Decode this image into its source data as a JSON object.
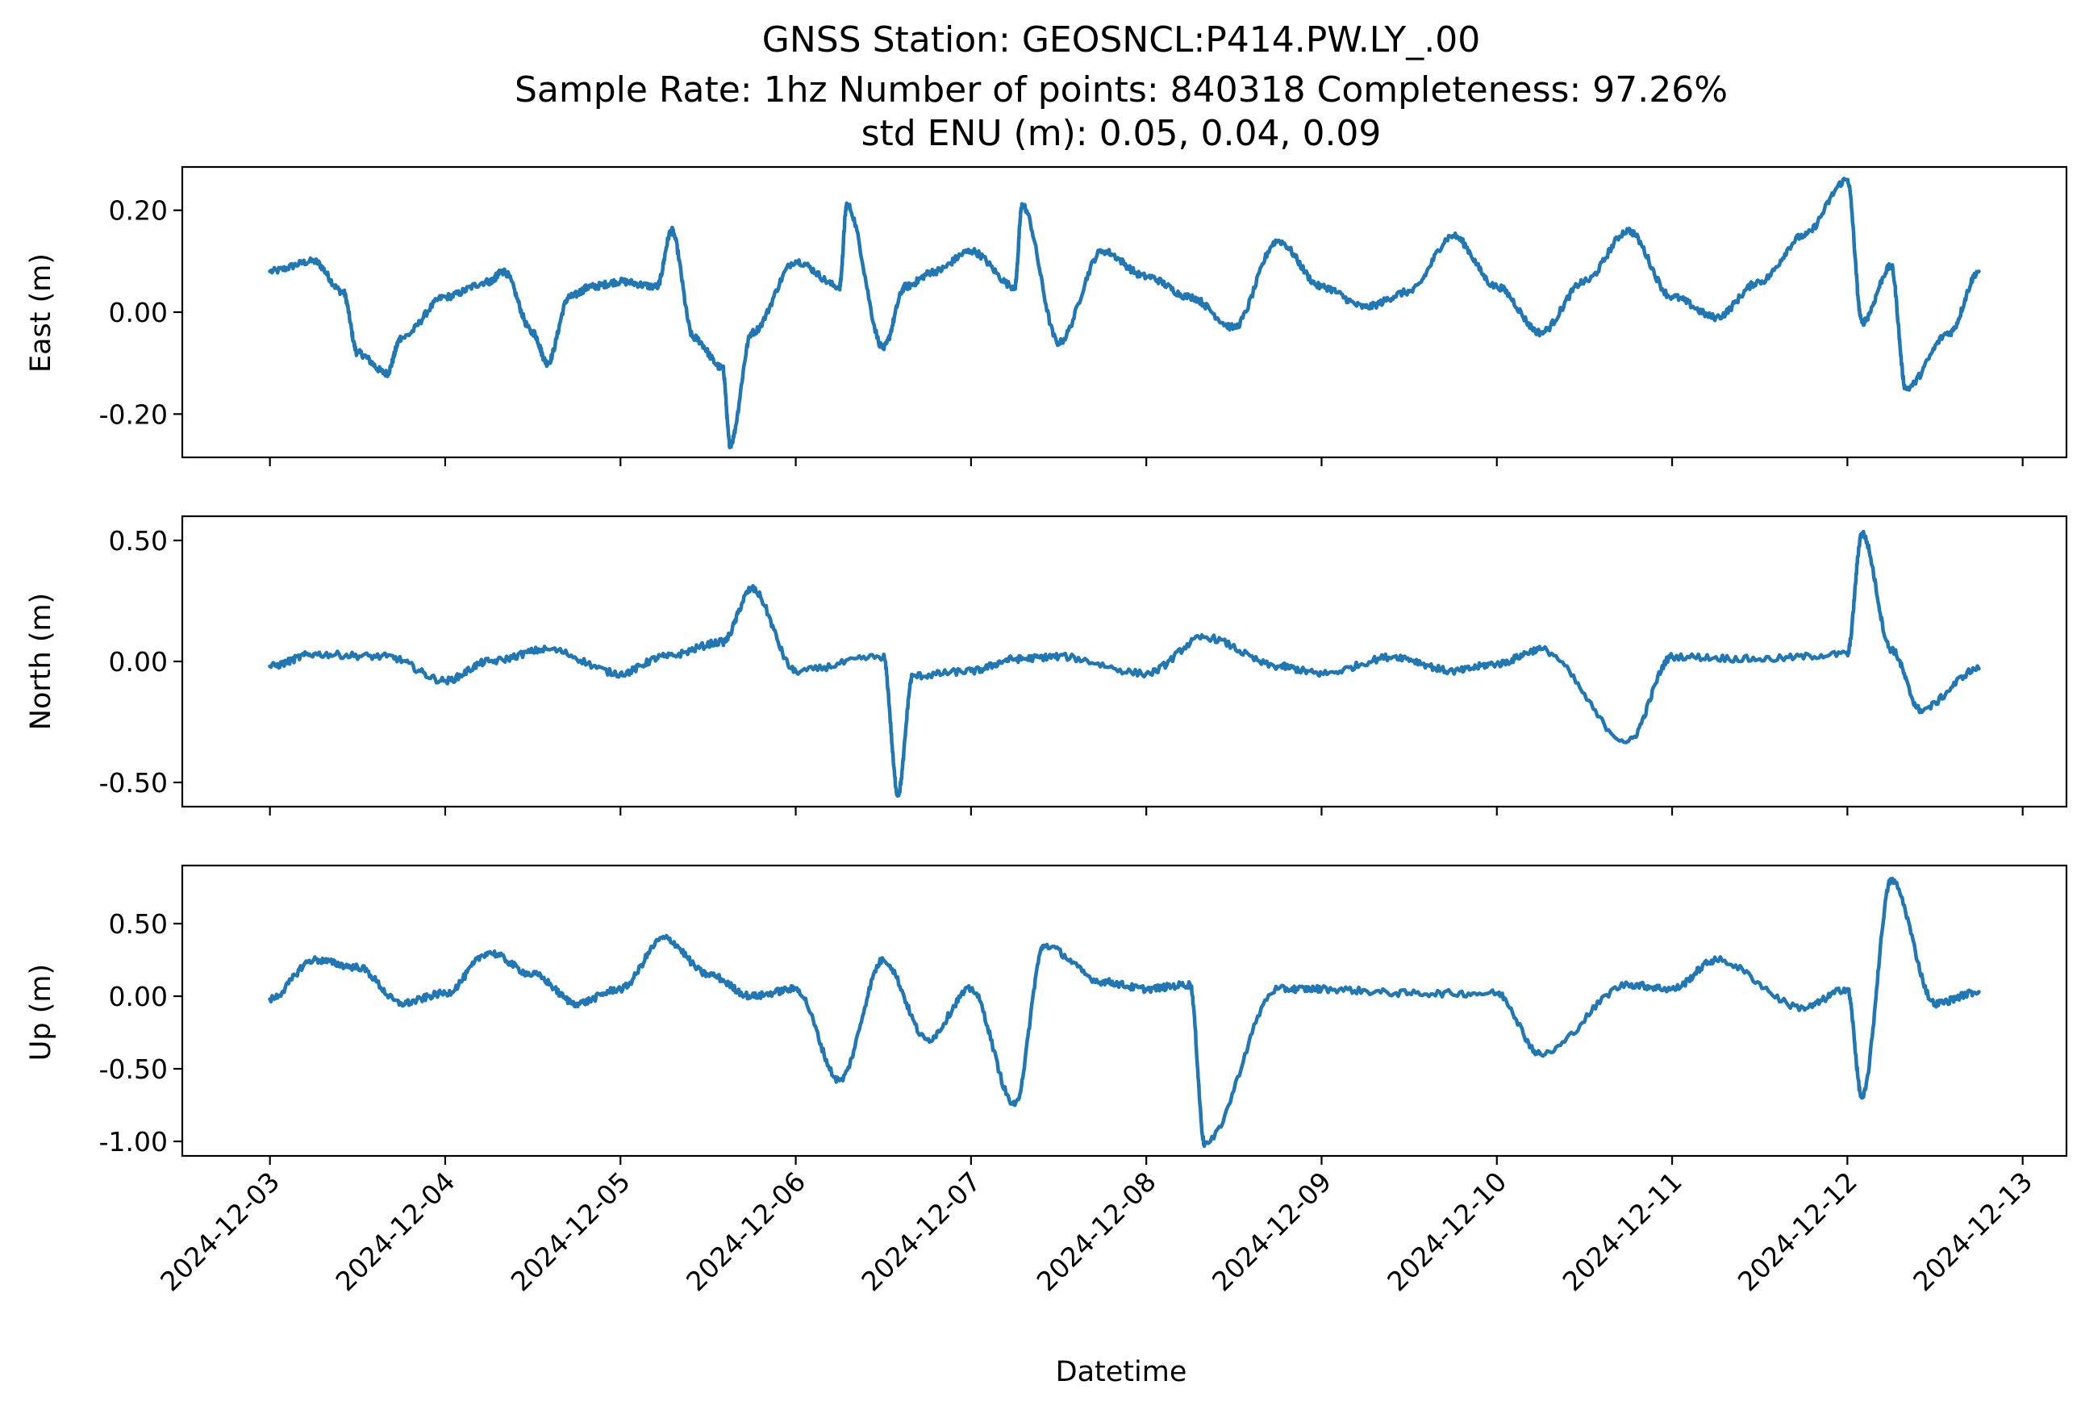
{
  "figure": {
    "title_lines": [
      "GNSS Station: GEOSNCL:P414.PW.LY_.00",
      "Sample Rate: 1hz   Number of points: 840318    Completeness:  97.26%",
      "std ENU (m):  0.05, 0.04, 0.09"
    ],
    "xlabel": "Datetime",
    "line_color": "#1f77b4"
  },
  "chart_data": [
    {
      "type": "line",
      "panel": "east",
      "ylabel": "East (m)",
      "x_ticks": [
        "2024-12-03",
        "2024-12-04",
        "2024-12-05",
        "2024-12-06",
        "2024-12-07",
        "2024-12-08",
        "2024-12-09",
        "2024-12-10",
        "2024-12-11",
        "2024-12-12",
        "2024-12-13"
      ],
      "y_ticks": [
        0.2,
        0.0,
        -0.2
      ],
      "y_tick_labels": [
        "0.20",
        "0.00",
        "-0.20"
      ],
      "ylim": [
        -0.285,
        0.285
      ],
      "xlim": [
        "2024-12-02T12:00",
        "2024-12-13T06:00"
      ],
      "series": [
        {
          "x": [
            "2024-12-03T00:00",
            "2024-12-03T06:00",
            "2024-12-03T10:00",
            "2024-12-03T12:00",
            "2024-12-03T16:00",
            "2024-12-03T18:00",
            "2024-12-04T00:00",
            "2024-12-04T06:00",
            "2024-12-04T08:00",
            "2024-12-04T12:00",
            "2024-12-04T14:00",
            "2024-12-04T17:00",
            "2024-12-04T20:00",
            "2024-12-05T00:00",
            "2024-12-05T05:00",
            "2024-12-05T07:00",
            "2024-12-05T10:00",
            "2024-12-05T14:00",
            "2024-12-05T15:00",
            "2024-12-05T18:00",
            "2024-12-06T00:00",
            "2024-12-06T06:00",
            "2024-12-06T07:00",
            "2024-12-06T12:00",
            "2024-12-06T15:00",
            "2024-12-06T19:00",
            "2024-12-07T00:00",
            "2024-12-07T06:00",
            "2024-12-07T07:00",
            "2024-12-07T12:00",
            "2024-12-07T18:00",
            "2024-12-08T00:00",
            "2024-12-08T06:00",
            "2024-12-08T12:00",
            "2024-12-08T18:00",
            "2024-12-09T00:00",
            "2024-12-09T06:00",
            "2024-12-09T12:00",
            "2024-12-09T18:00",
            "2024-12-10T00:00",
            "2024-12-10T06:00",
            "2024-12-10T12:00",
            "2024-12-10T18:00",
            "2024-12-11T00:00",
            "2024-12-11T06:00",
            "2024-12-11T12:00",
            "2024-12-11T18:00",
            "2024-12-12T00:00",
            "2024-12-12T02:00",
            "2024-12-12T06:00",
            "2024-12-12T08:00",
            "2024-12-12T14:00",
            "2024-12-12T18:00"
          ],
          "y": [
            0.08,
            0.1,
            0.04,
            -0.08,
            -0.12,
            -0.05,
            0.03,
            0.06,
            0.08,
            -0.04,
            -0.1,
            0.03,
            0.05,
            0.06,
            0.05,
            0.16,
            -0.05,
            -0.11,
            -0.26,
            -0.04,
            0.1,
            0.05,
            0.21,
            -0.07,
            0.05,
            0.08,
            0.12,
            0.05,
            0.21,
            -0.06,
            0.12,
            0.07,
            0.03,
            -0.03,
            0.14,
            0.05,
            0.01,
            0.04,
            0.15,
            0.05,
            -0.04,
            0.06,
            0.16,
            0.03,
            -0.01,
            0.06,
            0.15,
            0.26,
            -0.02,
            0.09,
            -0.15,
            -0.04,
            0.08
          ]
        }
      ]
    },
    {
      "type": "line",
      "panel": "north",
      "ylabel": "North (m)",
      "x_ticks": [
        "2024-12-03",
        "2024-12-04",
        "2024-12-05",
        "2024-12-06",
        "2024-12-07",
        "2024-12-08",
        "2024-12-09",
        "2024-12-10",
        "2024-12-11",
        "2024-12-12",
        "2024-12-13"
      ],
      "y_ticks": [
        0.5,
        0.0,
        -0.5
      ],
      "y_tick_labels": [
        "0.50",
        "0.00",
        "-0.50"
      ],
      "ylim": [
        -0.6,
        0.6
      ],
      "xlim": [
        "2024-12-02T12:00",
        "2024-12-13T06:00"
      ],
      "series": [
        {
          "x": [
            "2024-12-03T00:00",
            "2024-12-03T06:00",
            "2024-12-03T16:00",
            "2024-12-04T00:00",
            "2024-12-04T06:00",
            "2024-12-04T14:00",
            "2024-12-05T00:00",
            "2024-12-05T06:00",
            "2024-12-05T14:00",
            "2024-12-05T18:00",
            "2024-12-06T00:00",
            "2024-12-06T12:00",
            "2024-12-06T14:00",
            "2024-12-06T16:00",
            "2024-12-07T00:00",
            "2024-12-07T06:00",
            "2024-12-07T12:00",
            "2024-12-08T00:00",
            "2024-12-08T08:00",
            "2024-12-08T18:00",
            "2024-12-09T00:00",
            "2024-12-09T10:00",
            "2024-12-09T18:00",
            "2024-12-10T00:00",
            "2024-12-10T06:00",
            "2024-12-10T18:00",
            "2024-12-11T00:00",
            "2024-12-11T12:00",
            "2024-12-12T00:00",
            "2024-12-12T02:00",
            "2024-12-12T06:00",
            "2024-12-12T10:00",
            "2024-12-12T18:00"
          ],
          "y": [
            -0.02,
            0.03,
            0.02,
            -0.08,
            0.0,
            0.05,
            -0.05,
            0.02,
            0.08,
            0.3,
            -0.04,
            0.02,
            -0.55,
            -0.06,
            -0.04,
            0.01,
            0.02,
            -0.05,
            0.1,
            -0.02,
            -0.05,
            0.02,
            -0.04,
            -0.01,
            0.05,
            -0.33,
            0.02,
            0.01,
            0.03,
            0.53,
            0.05,
            -0.2,
            -0.03
          ]
        }
      ]
    },
    {
      "type": "line",
      "panel": "up",
      "ylabel": "Up (m)",
      "x_ticks": [
        "2024-12-03",
        "2024-12-04",
        "2024-12-05",
        "2024-12-06",
        "2024-12-07",
        "2024-12-08",
        "2024-12-09",
        "2024-12-10",
        "2024-12-11",
        "2024-12-12",
        "2024-12-13"
      ],
      "y_ticks": [
        0.5,
        0.0,
        -0.5,
        -1.0
      ],
      "y_tick_labels": [
        "0.50",
        "0.00",
        "-0.50",
        "-1.00"
      ],
      "ylim": [
        -1.1,
        0.9
      ],
      "xlim": [
        "2024-12-02T12:00",
        "2024-12-13T06:00"
      ],
      "series": [
        {
          "x": [
            "2024-12-03T00:00",
            "2024-12-03T06:00",
            "2024-12-03T12:00",
            "2024-12-03T18:00",
            "2024-12-04T00:00",
            "2024-12-04T06:00",
            "2024-12-04T12:00",
            "2024-12-04T18:00",
            "2024-12-05T00:00",
            "2024-12-05T06:00",
            "2024-12-05T12:00",
            "2024-12-05T18:00",
            "2024-12-06T00:00",
            "2024-12-06T06:00",
            "2024-12-06T12:00",
            "2024-12-06T18:00",
            "2024-12-07T00:00",
            "2024-12-07T06:00",
            "2024-12-07T10:00",
            "2024-12-07T18:00",
            "2024-12-08T00:00",
            "2024-12-08T06:00",
            "2024-12-08T08:00",
            "2024-12-08T18:00",
            "2024-12-09T00:00",
            "2024-12-09T12:00",
            "2024-12-10T00:00",
            "2024-12-10T06:00",
            "2024-12-10T18:00",
            "2024-12-11T00:00",
            "2024-12-11T06:00",
            "2024-12-11T18:00",
            "2024-12-12T00:00",
            "2024-12-12T02:00",
            "2024-12-12T06:00",
            "2024-12-12T12:00",
            "2024-12-12T18:00"
          ],
          "y": [
            -0.02,
            0.25,
            0.2,
            -0.05,
            0.02,
            0.3,
            0.15,
            -0.05,
            0.05,
            0.4,
            0.15,
            0.0,
            0.05,
            -0.58,
            0.25,
            -0.3,
            0.05,
            -0.75,
            0.35,
            0.1,
            0.05,
            0.08,
            -1.02,
            0.05,
            0.05,
            0.02,
            0.02,
            -0.4,
            0.08,
            0.05,
            0.25,
            -0.08,
            0.05,
            -0.7,
            0.8,
            -0.05,
            0.03
          ]
        }
      ]
    }
  ]
}
